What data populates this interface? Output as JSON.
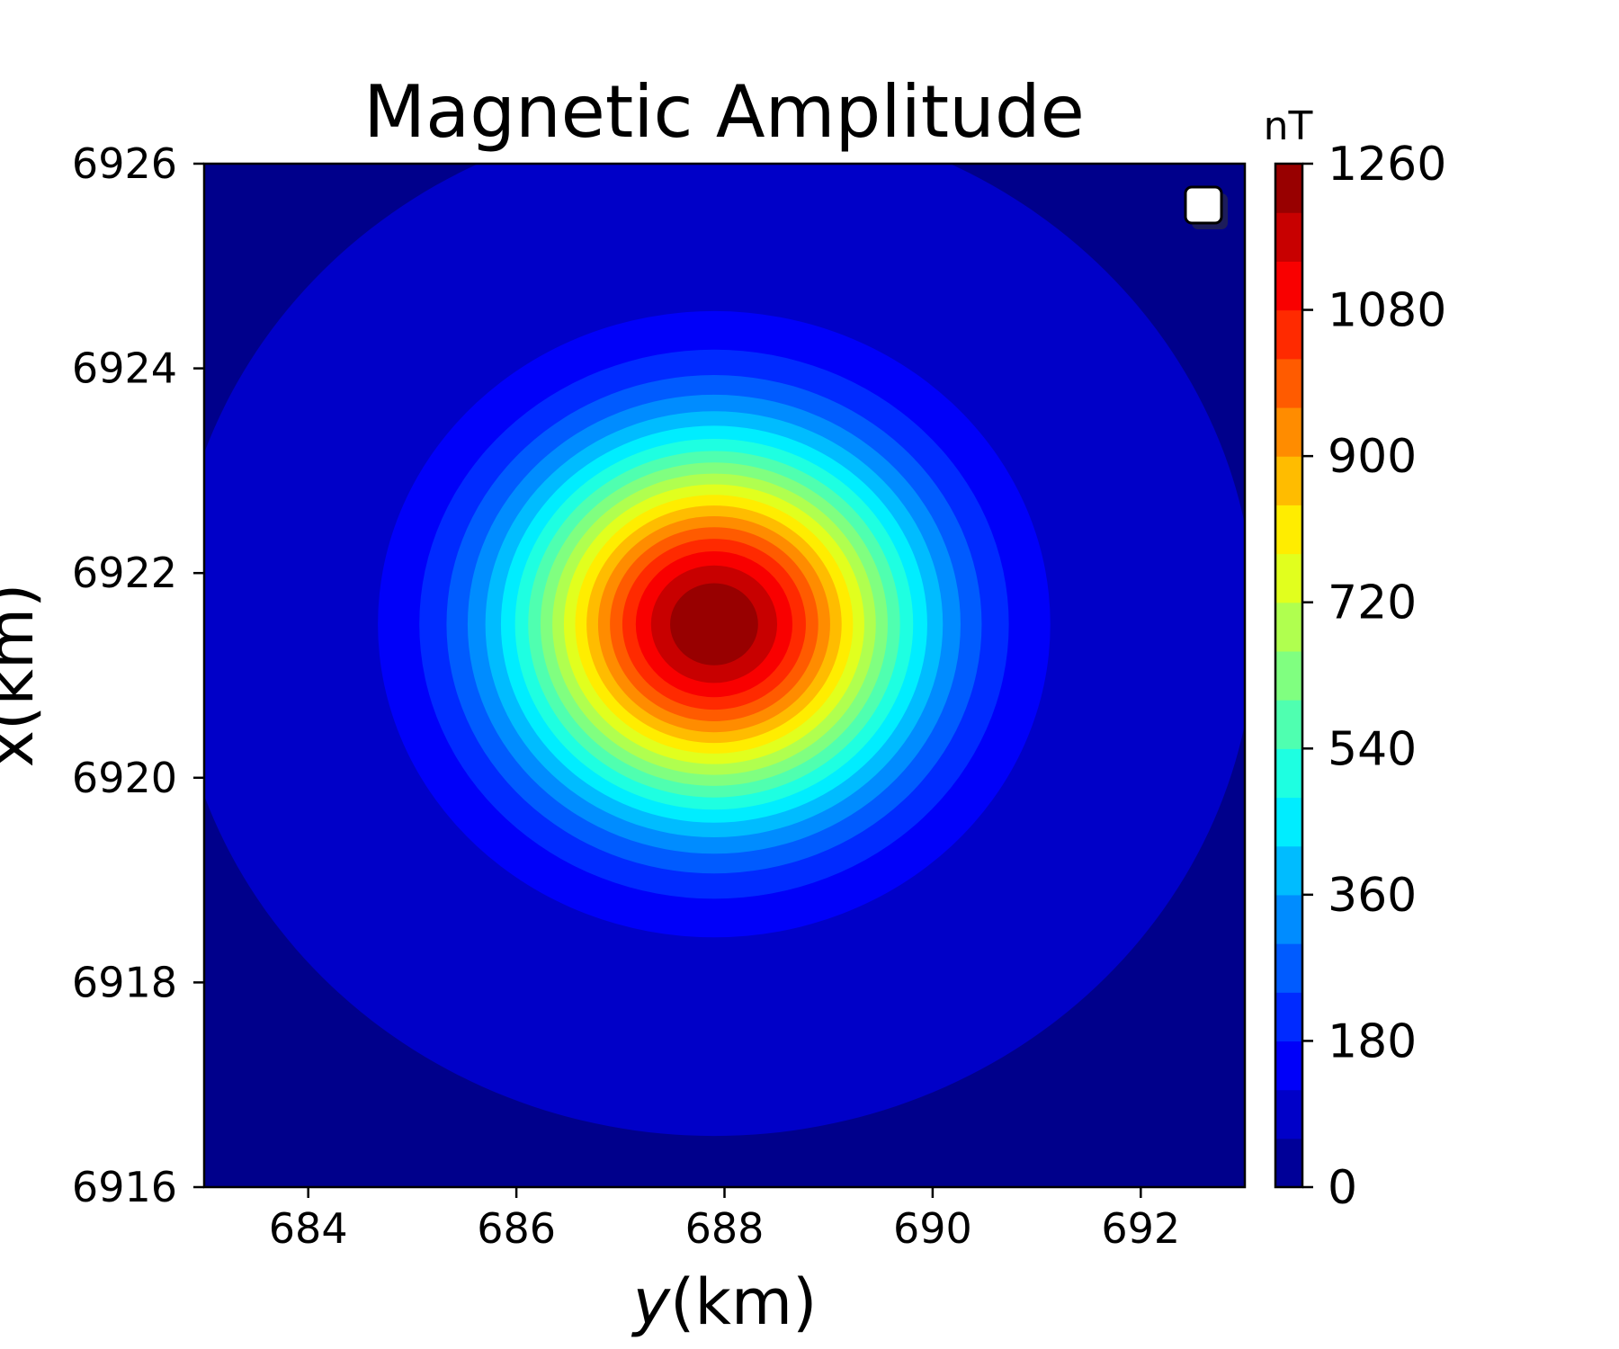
{
  "chart_data": {
    "type": "heatmap",
    "subtype": "filled-contour",
    "title": "Magnetic Amplitude",
    "xlabel_prefix": "y",
    "xlabel_suffix": "(km)",
    "ylabel": "x(km)",
    "xlim": [
      683,
      693
    ],
    "ylim": [
      6916,
      6926
    ],
    "x_ticks": [
      684,
      686,
      688,
      690,
      692
    ],
    "y_ticks": [
      6916,
      6918,
      6920,
      6922,
      6924,
      6926
    ],
    "colormap": "jet",
    "colorbar": {
      "label": "nT",
      "range": [
        0,
        1260
      ],
      "ticks": [
        0,
        180,
        360,
        540,
        720,
        900,
        1080,
        1260
      ],
      "levels": 21
    },
    "anomaly": {
      "peak_y_km": 687.9,
      "peak_x_km": 6921.5,
      "peak_value_nT": 1260,
      "background_nT": 60
    },
    "legend": {
      "position": "upper-right",
      "entries": []
    },
    "grid": false
  }
}
